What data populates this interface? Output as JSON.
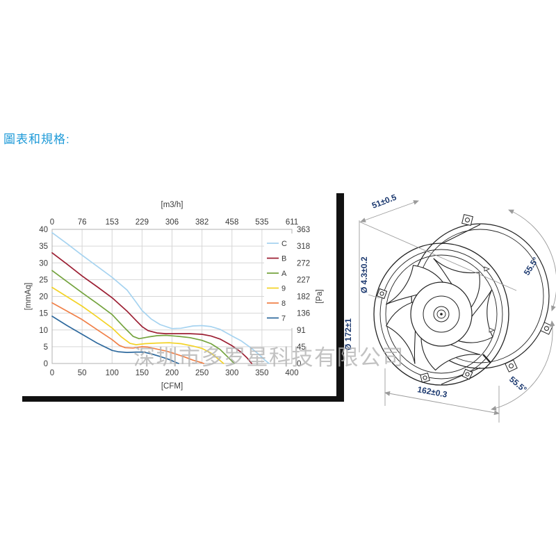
{
  "page": {
    "heading": "圖表和規格:",
    "heading_color": "#1e9ad8",
    "watermark": "深圳市多罗星科技有限公司"
  },
  "chart_data": {
    "type": "line",
    "title": "",
    "grid": true,
    "legend_position": "inside-top-right",
    "top_axis": {
      "label": "[m3/h]",
      "ticks": [
        "0",
        "76",
        "153",
        "229",
        "306",
        "382",
        "458",
        "535",
        "611"
      ]
    },
    "bottom_axis": {
      "label": "[CFM]",
      "ticks": [
        "0",
        "50",
        "100",
        "150",
        "200",
        "250",
        "300",
        "350",
        "400"
      ],
      "range": [
        0,
        400
      ]
    },
    "left_axis": {
      "label": "[mmAq]",
      "ticks": [
        "40",
        "35",
        "30",
        "25",
        "20",
        "15",
        "10",
        "5",
        "0"
      ],
      "range": [
        0,
        40
      ]
    },
    "right_axis": {
      "label": "[Pa]",
      "ticks": [
        "363",
        "318",
        "272",
        "227",
        "182",
        "136",
        "91",
        "45",
        "0"
      ],
      "range": [
        0,
        363
      ]
    },
    "series": [
      {
        "name": "C",
        "color": "#a6d3f0",
        "points": [
          [
            0,
            39
          ],
          [
            25,
            35.7
          ],
          [
            50,
            32.3
          ],
          [
            75,
            29
          ],
          [
            100,
            25.7
          ],
          [
            125,
            21.9
          ],
          [
            140,
            18.3
          ],
          [
            150,
            15.8
          ],
          [
            165,
            13.3
          ],
          [
            180,
            11.6
          ],
          [
            200,
            10.4
          ],
          [
            215,
            10.5
          ],
          [
            235,
            11.2
          ],
          [
            250,
            11.3
          ],
          [
            265,
            11
          ],
          [
            280,
            10.2
          ],
          [
            300,
            8.2
          ],
          [
            315,
            6.8
          ],
          [
            330,
            4.9
          ],
          [
            345,
            2.7
          ],
          [
            355,
            1
          ],
          [
            362,
            0
          ]
        ]
      },
      {
        "name": "B",
        "color": "#9c1f33",
        "points": [
          [
            0,
            33
          ],
          [
            25,
            29.6
          ],
          [
            50,
            26.1
          ],
          [
            75,
            22.9
          ],
          [
            100,
            19.6
          ],
          [
            125,
            15.6
          ],
          [
            140,
            12.8
          ],
          [
            150,
            11
          ],
          [
            160,
            9.8
          ],
          [
            175,
            9.1
          ],
          [
            190,
            8.9
          ],
          [
            210,
            8.9
          ],
          [
            230,
            8.9
          ],
          [
            250,
            8.7
          ],
          [
            265,
            8.2
          ],
          [
            280,
            7.3
          ],
          [
            300,
            5.3
          ],
          [
            315,
            3.4
          ],
          [
            325,
            1.7
          ],
          [
            333,
            0
          ]
        ]
      },
      {
        "name": "A",
        "color": "#74a33e",
        "points": [
          [
            0,
            27.7
          ],
          [
            25,
            24.4
          ],
          [
            50,
            21.1
          ],
          [
            75,
            17.9
          ],
          [
            100,
            14.6
          ],
          [
            120,
            10.8
          ],
          [
            135,
            8.1
          ],
          [
            145,
            7.4
          ],
          [
            160,
            7.9
          ],
          [
            175,
            8.3
          ],
          [
            190,
            8.4
          ],
          [
            210,
            8.1
          ],
          [
            230,
            7.7
          ],
          [
            250,
            6.9
          ],
          [
            265,
            5.9
          ],
          [
            280,
            4.2
          ],
          [
            295,
            1.6
          ],
          [
            304,
            0
          ]
        ]
      },
      {
        "name": "9",
        "color": "#f3d327",
        "points": [
          [
            0,
            22.7
          ],
          [
            25,
            19.9
          ],
          [
            50,
            17.1
          ],
          [
            75,
            13.9
          ],
          [
            100,
            10.6
          ],
          [
            115,
            8
          ],
          [
            130,
            6
          ],
          [
            140,
            5.6
          ],
          [
            155,
            5.9
          ],
          [
            175,
            6.1
          ],
          [
            195,
            6.2
          ],
          [
            215,
            5.9
          ],
          [
            235,
            5.2
          ],
          [
            250,
            4.5
          ],
          [
            265,
            3.1
          ],
          [
            278,
            1.2
          ],
          [
            286,
            0
          ]
        ]
      },
      {
        "name": "8",
        "color": "#f08048",
        "points": [
          [
            0,
            18.1
          ],
          [
            25,
            15.6
          ],
          [
            50,
            13.1
          ],
          [
            75,
            10.1
          ],
          [
            100,
            7.1
          ],
          [
            112,
            5.4
          ],
          [
            122,
            4.7
          ],
          [
            135,
            4.6
          ],
          [
            150,
            5
          ],
          [
            160,
            4.9
          ],
          [
            175,
            4.3
          ],
          [
            190,
            3.7
          ],
          [
            205,
            2.9
          ],
          [
            220,
            2
          ],
          [
            235,
            1
          ],
          [
            250,
            0.2
          ],
          [
            253,
            0
          ]
        ]
      },
      {
        "name": "7",
        "color": "#2f6a9e",
        "points": [
          [
            0,
            14.1
          ],
          [
            25,
            11.3
          ],
          [
            50,
            8.7
          ],
          [
            75,
            6.1
          ],
          [
            100,
            3.9
          ],
          [
            110,
            3.5
          ],
          [
            125,
            3.3
          ],
          [
            140,
            3.4
          ],
          [
            152,
            3.4
          ],
          [
            165,
            2.9
          ],
          [
            180,
            2.1
          ],
          [
            195,
            1.2
          ],
          [
            208,
            0.2
          ],
          [
            211,
            0
          ]
        ]
      }
    ]
  },
  "diagram": {
    "label_color": "#1d3a70",
    "depth": "51±0.5",
    "hole_diameter": "Ø 4.3±0.2",
    "fan_diameter": "Ø 172±1",
    "mount_spacing": "162±0.3",
    "angle_top": "55.5°",
    "angle_bottom": "55.5°"
  }
}
